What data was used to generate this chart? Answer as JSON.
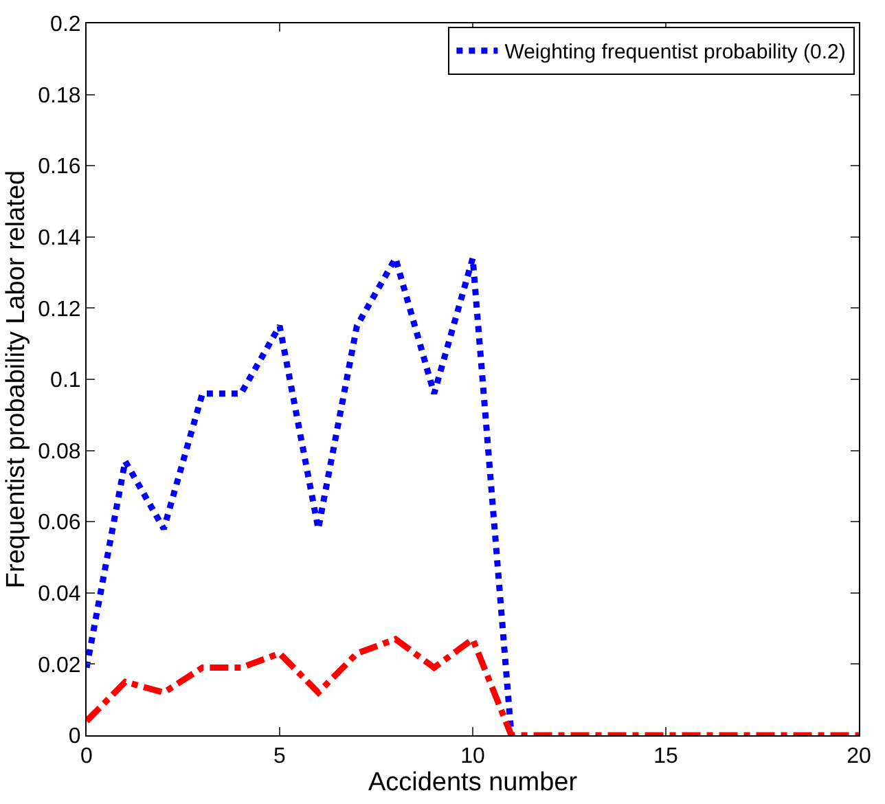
{
  "chart_data": {
    "type": "line",
    "xlabel": "Accidents number",
    "ylabel": "Frequentist probability Labor related",
    "x": [
      0,
      1,
      2,
      3,
      4,
      5,
      6,
      7,
      8,
      9,
      10,
      11,
      12,
      13,
      14,
      15,
      16,
      17,
      18,
      19,
      20
    ],
    "series": [
      {
        "name": "Weighting frequentist probability (0.2)",
        "color": "#0000ff",
        "line_style": "dotted",
        "values": [
          0.019,
          0.077,
          0.058,
          0.096,
          0.096,
          0.115,
          0.058,
          0.115,
          0.134,
          0.096,
          0.134,
          0,
          null,
          null,
          null,
          null,
          null,
          null,
          null,
          null,
          null
        ]
      },
      {
        "color": "#ff0000",
        "line_style": "dashed",
        "values": [
          0.004,
          0.015,
          0.012,
          0.019,
          0.019,
          0.023,
          0.012,
          0.023,
          0.027,
          0.019,
          0.027,
          0,
          0,
          0,
          0,
          0,
          0,
          0,
          0,
          0,
          0
        ]
      }
    ],
    "xlim": [
      0,
      20
    ],
    "xticks": [
      0,
      5,
      10,
      15,
      20
    ],
    "ylim": [
      0,
      0.2
    ],
    "yticks": [
      0,
      0.02,
      0.04,
      0.06,
      0.08,
      0.1,
      0.12,
      0.14,
      0.16,
      0.18,
      0.2
    ],
    "grid": false,
    "legend": "top right",
    "marker": "none"
  }
}
